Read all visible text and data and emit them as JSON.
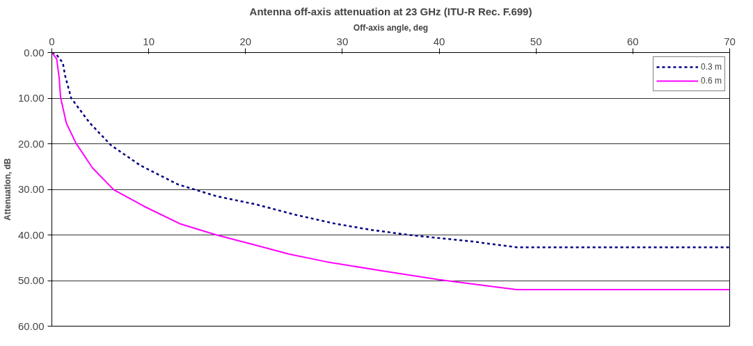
{
  "chart_data": {
    "type": "line",
    "title": "Antenna off-axis attenuation at 23 GHz (ITU-R Rec. F.699)",
    "xlabel": "Off-axis angle, deg",
    "ylabel": "Attenuation, dB",
    "xlim": [
      0,
      70
    ],
    "xticks": [
      0,
      10,
      20,
      30,
      40,
      50,
      60,
      70
    ],
    "ylim": [
      60,
      0
    ],
    "yticks": [
      {
        "value": 0,
        "label": "0.00"
      },
      {
        "value": 10,
        "label": "10.00"
      },
      {
        "value": 20,
        "label": "20.00"
      },
      {
        "value": 30,
        "label": "30.00"
      },
      {
        "value": 40,
        "label": "40.00"
      },
      {
        "value": 50,
        "label": "50.00"
      },
      {
        "value": 60,
        "label": "60.00"
      }
    ],
    "grid": "y",
    "legend": "top right",
    "marker": "none",
    "series": [
      {
        "name": "0.3 m",
        "color": "#000080",
        "line_style": "dashed",
        "x": [
          0,
          0.5,
          1.14,
          1.36,
          2.0,
          3.9,
          6.1,
          9.1,
          13.0,
          17.0,
          21.1,
          25.0,
          29.2,
          33.0,
          37.3,
          43.3,
          48.0,
          70
        ],
        "values": [
          0,
          0.5,
          2.3,
          5.0,
          10.0,
          15.4,
          20.3,
          24.7,
          28.9,
          31.5,
          33.3,
          35.5,
          37.5,
          38.9,
          40.1,
          41.4,
          42.7,
          42.7
        ]
      },
      {
        "name": "0.6 m",
        "color": "#ff00ff",
        "line_style": "solid",
        "x": [
          0,
          0.5,
          0.76,
          0.9,
          1.5,
          2.5,
          4.2,
          6.4,
          9.5,
          13.3,
          17.0,
          20.8,
          24.5,
          28.4,
          34.2,
          40.0,
          48.0,
          70
        ],
        "values": [
          0,
          1.4,
          5.6,
          9.8,
          15.5,
          19.9,
          25.3,
          30.1,
          33.7,
          37.6,
          40.0,
          42.1,
          44.2,
          45.9,
          47.9,
          49.8,
          52.0,
          52.0
        ]
      }
    ]
  }
}
